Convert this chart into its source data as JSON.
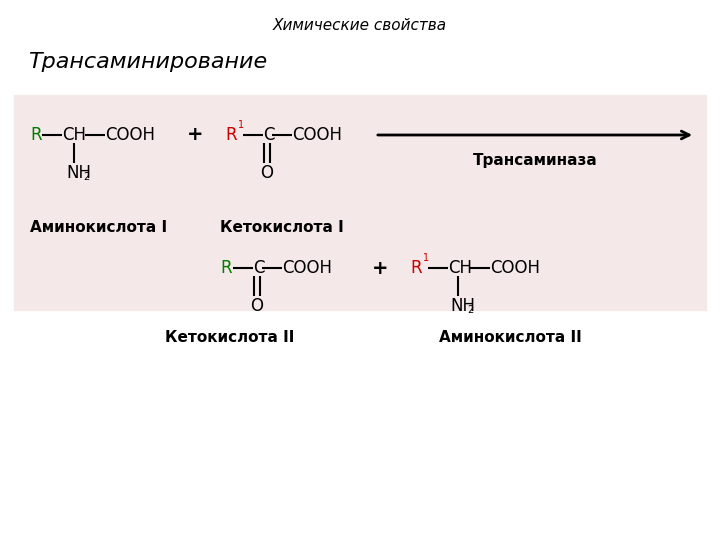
{
  "title": "Химические свойства",
  "subtitle": "Трансаминирование",
  "bg_color": "#ffffff",
  "box_color": "#f5e8e8",
  "enzyme_label": "Трансаминаза",
  "label_amino1": "Аминокислота I",
  "label_keto1": "Кетокислота I",
  "label_keto2": "Кетокислота II",
  "label_amino2": "Аминокислота II",
  "green": "#008000",
  "red": "#cc0000",
  "black": "#000000"
}
